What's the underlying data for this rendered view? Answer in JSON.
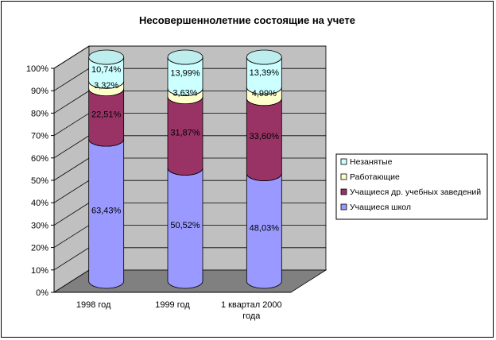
{
  "chart_data": {
    "type": "bar",
    "stacked": true,
    "percent_stacked": true,
    "three_d": true,
    "title": "Несовершеннолетние состоящие на учете",
    "categories": [
      "1998 год",
      "1999 год",
      "1 квартал 2000 года"
    ],
    "series": [
      {
        "name": "Учащиеся школ",
        "values": [
          63.43,
          50.52,
          48.03
        ],
        "labels": [
          "63,43%",
          "50,52%",
          "48,03%"
        ],
        "color": "#9999ff"
      },
      {
        "name": "Учащиеся др. учебных заведений",
        "values": [
          22.51,
          31.87,
          33.6
        ],
        "labels": [
          "22,51%",
          "31,87%",
          "33,60%"
        ],
        "color": "#993366"
      },
      {
        "name": "Работающие",
        "values": [
          3.32,
          3.63,
          4.99
        ],
        "labels": [
          "3,32%",
          "3,63%",
          "4,99%"
        ],
        "color": "#ffffcc"
      },
      {
        "name": "Незанятые",
        "values": [
          10.74,
          13.99,
          13.39
        ],
        "labels": [
          "10,74%",
          "13,99%",
          "13,39%"
        ],
        "color": "#ccffff"
      }
    ],
    "y_ticks": [
      "0%",
      "10%",
      "20%",
      "30%",
      "40%",
      "50%",
      "60%",
      "70%",
      "80%",
      "90%",
      "100%"
    ],
    "ylim": [
      0,
      100
    ],
    "grid": true,
    "legend_position": "right",
    "legend_order": [
      "Незанятые",
      "Работающие",
      "Учащиеся др. учебных заведений",
      "Учащиеся школ"
    ],
    "colors": {
      "wall": "#c0c0c0",
      "floor": "#808080",
      "grid": "#000000"
    }
  }
}
